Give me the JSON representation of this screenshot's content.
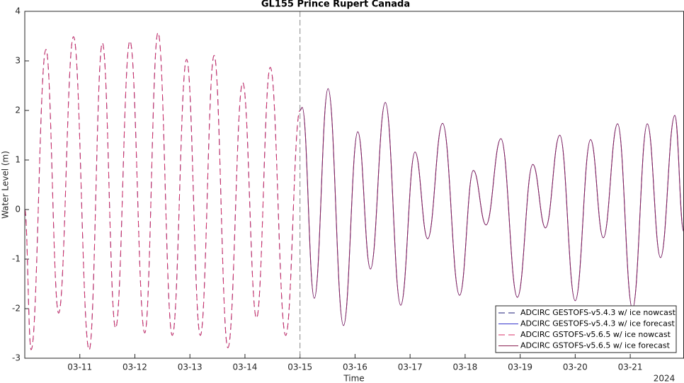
{
  "chart_data": {
    "type": "line",
    "title": "GL155 Prince Rupert Canada",
    "xlabel": "Time",
    "ylabel": "Water Level (m)",
    "x_note": "2024",
    "xlim": [
      10.0,
      21.97
    ],
    "xticks": [
      {
        "value": 11,
        "label": "03-11"
      },
      {
        "value": 12,
        "label": "03-12"
      },
      {
        "value": 13,
        "label": "03-13"
      },
      {
        "value": 14,
        "label": "03-14"
      },
      {
        "value": 15,
        "label": "03-15"
      },
      {
        "value": 16,
        "label": "03-16"
      },
      {
        "value": 17,
        "label": "03-17"
      },
      {
        "value": 18,
        "label": "03-18"
      },
      {
        "value": 19,
        "label": "03-19"
      },
      {
        "value": 20,
        "label": "03-20"
      },
      {
        "value": 21,
        "label": "03-21"
      }
    ],
    "ylim": [
      -3,
      4
    ],
    "yticks": [
      -3,
      -2,
      -1,
      0,
      1,
      2,
      3,
      4
    ],
    "vline": 15,
    "grid": false,
    "legend_position": "lower right",
    "series": [
      {
        "name": "ADCIRC GESTOFS-v5.4.3 w/ ice nowcast",
        "color": "#1c1c78",
        "linestyle": "dashed",
        "x": [
          10.0,
          10.115,
          10.385,
          10.615,
          10.885,
          11.17,
          11.41,
          11.65,
          11.91,
          12.18,
          12.42,
          12.68,
          12.94,
          13.19,
          13.44,
          13.69,
          13.96,
          14.21,
          14.46,
          14.74,
          15.0
        ],
        "values": [
          0,
          -2.83,
          3.23,
          -2.09,
          3.49,
          -2.83,
          3.36,
          -2.39,
          3.4,
          -2.49,
          3.57,
          -2.54,
          3.03,
          -2.54,
          3.11,
          -2.79,
          2.56,
          -2.19,
          2.87,
          -2.54,
          2.0
        ]
      },
      {
        "name": "ADCIRC GESTOFS-v5.4.3 w/ ice forecast",
        "color": "#3535cc",
        "linestyle": "solid",
        "x": [
          15.0,
          15.04,
          15.26,
          15.51,
          15.79,
          16.05,
          16.28,
          16.55,
          16.83,
          17.09,
          17.32,
          17.59,
          17.9,
          18.15,
          18.38,
          18.65,
          18.95,
          19.23,
          19.46,
          19.72,
          20.0,
          20.28,
          20.51,
          20.77,
          21.04,
          21.31,
          21.55,
          21.81,
          21.97
        ],
        "values": [
          2.0,
          2.06,
          -1.79,
          2.44,
          -2.34,
          1.57,
          -1.2,
          2.16,
          -1.93,
          1.16,
          -0.59,
          1.74,
          -1.73,
          0.79,
          -0.31,
          1.43,
          -1.77,
          0.91,
          -0.37,
          1.5,
          -1.84,
          1.41,
          -0.57,
          1.73,
          -2.0,
          1.73,
          -0.97,
          1.9,
          -0.44
        ]
      },
      {
        "name": "ADCIRC GSTOFS-v5.6.5 w/ ice nowcast",
        "color": "#d8336a",
        "linestyle": "dashed",
        "x": [
          10.0,
          10.115,
          10.385,
          10.615,
          10.885,
          11.17,
          11.41,
          11.65,
          11.91,
          12.18,
          12.42,
          12.68,
          12.94,
          13.19,
          13.44,
          13.69,
          13.96,
          14.21,
          14.46,
          14.74,
          15.0
        ],
        "values": [
          0,
          -2.83,
          3.23,
          -2.09,
          3.49,
          -2.83,
          3.36,
          -2.39,
          3.4,
          -2.49,
          3.57,
          -2.54,
          3.03,
          -2.54,
          3.11,
          -2.79,
          2.56,
          -2.19,
          2.87,
          -2.54,
          2.0
        ]
      },
      {
        "name": "ADCIRC GSTOFS-v5.6.5 w/ ice forecast",
        "color": "#8b2252",
        "linestyle": "solid",
        "x": [
          15.0,
          15.04,
          15.26,
          15.51,
          15.79,
          16.05,
          16.28,
          16.55,
          16.83,
          17.09,
          17.32,
          17.59,
          17.9,
          18.15,
          18.38,
          18.65,
          18.95,
          19.23,
          19.46,
          19.72,
          20.0,
          20.28,
          20.51,
          20.77,
          21.04,
          21.31,
          21.55,
          21.81,
          21.97
        ],
        "values": [
          2.0,
          2.06,
          -1.79,
          2.44,
          -2.34,
          1.57,
          -1.2,
          2.16,
          -1.93,
          1.16,
          -0.59,
          1.74,
          -1.73,
          0.79,
          -0.31,
          1.43,
          -1.77,
          0.91,
          -0.37,
          1.5,
          -1.84,
          1.41,
          -0.57,
          1.73,
          -2.0,
          1.73,
          -0.97,
          1.9,
          -0.44
        ]
      }
    ]
  }
}
